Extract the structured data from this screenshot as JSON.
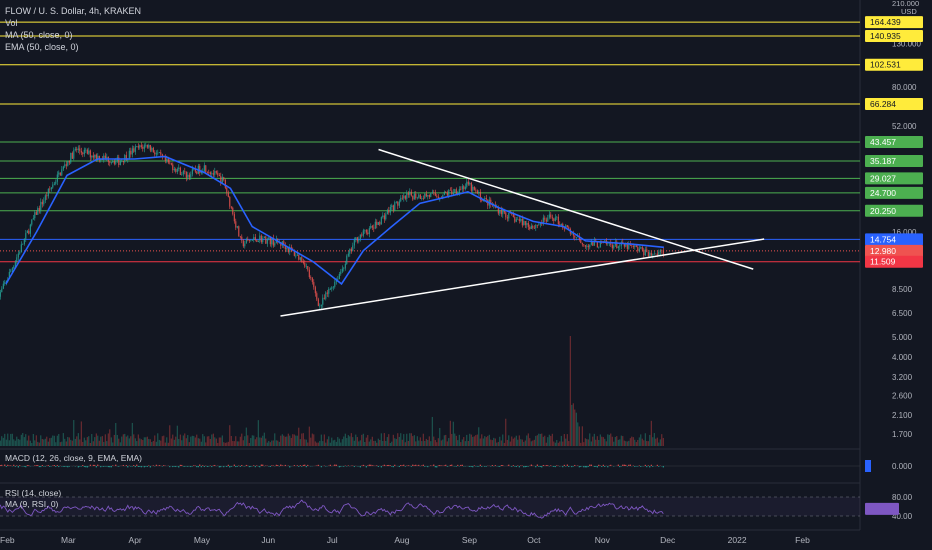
{
  "header": {
    "title": "FLOW / U. S. Dollar, 4h, KRAKEN",
    "vol_label": "Vol",
    "ma_label": "MA (50, close, 0)",
    "ema_label": "EMA (50, close, 0)"
  },
  "axis": {
    "top_partial": "210.000",
    "currency": "USD",
    "price_ticks": [
      "130.000",
      "80.000",
      "52.000",
      "34.000",
      "16.000",
      "8.500",
      "6.500",
      "5.000",
      "4.000",
      "3.200",
      "2.600",
      "2.100",
      "1.700"
    ],
    "macd_tick": "0.000",
    "rsi_ticks": [
      "80.00",
      "40.00"
    ]
  },
  "levels": {
    "yellow": [
      "164.439",
      "140.935",
      "102.531",
      "66.284"
    ],
    "green": [
      "43.457",
      "35.187",
      "29.027",
      "24.700",
      "20.250"
    ],
    "blue": "14.754",
    "current_price": "12.980",
    "countdown": "01:02:18",
    "red": "11.509"
  },
  "macd_label": "MACD (12, 26, close, 9, EMA, EMA)",
  "rsi_label": "RSI (14, close)",
  "rsi_ma_label": "MA (9, RSI, 0)",
  "time_labels": [
    "Feb",
    "Mar",
    "Apr",
    "May",
    "Jun",
    "Jul",
    "Aug",
    "Sep",
    "Oct",
    "Nov",
    "Dec",
    "2022",
    "Feb"
  ],
  "colors": {
    "background": "#131722",
    "up": "#26a69a",
    "down": "#ef5350",
    "ma": "#2962ff",
    "ema": "#2962ff",
    "yellow_level": "#ffeb3b",
    "green_level": "#4caf50",
    "blue_level": "#2962ff",
    "red_level": "#f23645",
    "trendline": "#ffffff",
    "rsi_line": "#7e57c2"
  },
  "chart_data": {
    "type": "candlestick",
    "symbol": "FLOW / U. S. Dollar",
    "interval": "4h",
    "exchange": "KRAKEN",
    "y_scale": "log",
    "y_range": [
      1.5,
      230
    ],
    "price_path": [
      {
        "x": "2021-01-28",
        "y": 7.5
      },
      {
        "x": "2021-02-05",
        "y": 11.5
      },
      {
        "x": "2021-02-15",
        "y": 20
      },
      {
        "x": "2021-02-25",
        "y": 30
      },
      {
        "x": "2021-03-05",
        "y": 40
      },
      {
        "x": "2021-03-15",
        "y": 37
      },
      {
        "x": "2021-03-25",
        "y": 35
      },
      {
        "x": "2021-04-01",
        "y": 40
      },
      {
        "x": "2021-04-07",
        "y": 42
      },
      {
        "x": "2021-04-15",
        "y": 35
      },
      {
        "x": "2021-04-25",
        "y": 30
      },
      {
        "x": "2021-05-03",
        "y": 33
      },
      {
        "x": "2021-05-12",
        "y": 28
      },
      {
        "x": "2021-05-20",
        "y": 14
      },
      {
        "x": "2021-05-28",
        "y": 15
      },
      {
        "x": "2021-06-08",
        "y": 14
      },
      {
        "x": "2021-06-18",
        "y": 11.5
      },
      {
        "x": "2021-06-25",
        "y": 7
      },
      {
        "x": "2021-07-05",
        "y": 10.5
      },
      {
        "x": "2021-07-12",
        "y": 15
      },
      {
        "x": "2021-07-20",
        "y": 17
      },
      {
        "x": "2021-07-28",
        "y": 21
      },
      {
        "x": "2021-08-05",
        "y": 24
      },
      {
        "x": "2021-08-20",
        "y": 24
      },
      {
        "x": "2021-09-01",
        "y": 27
      },
      {
        "x": "2021-09-08",
        "y": 23
      },
      {
        "x": "2021-09-20",
        "y": 19
      },
      {
        "x": "2021-10-01",
        "y": 17
      },
      {
        "x": "2021-10-10",
        "y": 19
      },
      {
        "x": "2021-10-18",
        "y": 16
      },
      {
        "x": "2021-10-25",
        "y": 14
      },
      {
        "x": "2021-11-05",
        "y": 14
      },
      {
        "x": "2021-11-15",
        "y": 13.5
      },
      {
        "x": "2021-11-25",
        "y": 12.5
      },
      {
        "x": "2021-11-30",
        "y": 12.98
      }
    ],
    "moving_average": [
      {
        "x": "2021-02-01",
        "y": 9
      },
      {
        "x": "2021-02-15",
        "y": 16
      },
      {
        "x": "2021-03-01",
        "y": 30
      },
      {
        "x": "2021-03-15",
        "y": 36
      },
      {
        "x": "2021-04-01",
        "y": 36
      },
      {
        "x": "2021-04-15",
        "y": 37
      },
      {
        "x": "2021-05-03",
        "y": 31
      },
      {
        "x": "2021-05-15",
        "y": 26
      },
      {
        "x": "2021-05-25",
        "y": 17
      },
      {
        "x": "2021-06-08",
        "y": 14
      },
      {
        "x": "2021-06-22",
        "y": 11.5
      },
      {
        "x": "2021-07-05",
        "y": 9
      },
      {
        "x": "2021-07-15",
        "y": 13
      },
      {
        "x": "2021-07-28",
        "y": 17
      },
      {
        "x": "2021-08-10",
        "y": 22
      },
      {
        "x": "2021-09-01",
        "y": 25
      },
      {
        "x": "2021-09-15",
        "y": 21
      },
      {
        "x": "2021-10-01",
        "y": 18
      },
      {
        "x": "2021-10-15",
        "y": 17
      },
      {
        "x": "2021-10-25",
        "y": 14.5
      },
      {
        "x": "2021-11-15",
        "y": 14
      },
      {
        "x": "2021-11-30",
        "y": 13.5
      }
    ],
    "trendlines": [
      {
        "from": {
          "x": "2021-06-07",
          "y": 6.3
        },
        "to": {
          "x": "2022-01-15",
          "y": 14.8
        }
      },
      {
        "from": {
          "x": "2021-07-22",
          "y": 40
        },
        "to": {
          "x": "2022-01-10",
          "y": 10.6
        }
      }
    ],
    "horizontal_levels": [
      164.439,
      140.935,
      102.531,
      66.284,
      43.457,
      35.187,
      29.027,
      24.7,
      20.25,
      14.754,
      11.509
    ],
    "volume_spike": {
      "x": "2021-10-18"
    },
    "macd": {
      "ylabel_tick": 0.0
    },
    "rsi": {
      "upper": 80,
      "lower": 40,
      "level": "around 55"
    },
    "x_ticks": [
      "Feb",
      "Mar",
      "Apr",
      "May",
      "Jun",
      "Jul",
      "Aug",
      "Sep",
      "Oct",
      "Nov",
      "Dec",
      "2022",
      "Feb"
    ]
  }
}
